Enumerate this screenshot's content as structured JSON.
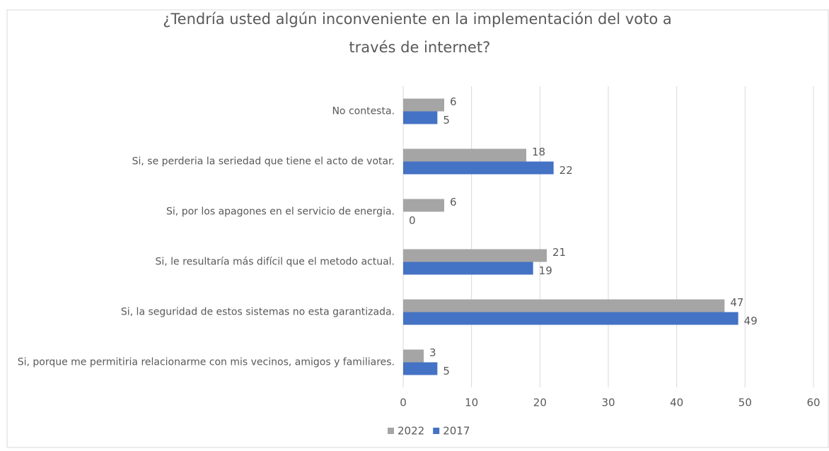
{
  "chart_data": {
    "type": "hbar",
    "title": "¿Tendría usted algún inconveniente en la implementación del voto a través de internet?",
    "categories": [
      "No contesta.",
      "Si, se perderia la seriedad que tiene el acto de votar.",
      "Si, por los apagones en el servicio de energia.",
      "Si, le resultaría más difícil que el metodo actual.",
      "Si, la seguridad de estos sistemas no esta garantizada.",
      "Si, porque me permitiria relacionarme con mis vecinos, amigos y familiares."
    ],
    "series": [
      {
        "name": "2022",
        "color": "#a5a5a5",
        "values": [
          6,
          18,
          6,
          21,
          47,
          3
        ]
      },
      {
        "name": "2017",
        "color": "#4472c4",
        "values": [
          5,
          22,
          0,
          19,
          49,
          5
        ]
      }
    ],
    "xlim": [
      0,
      60
    ],
    "xticks": [
      0,
      10,
      20,
      30,
      40,
      50,
      60
    ],
    "grid": true,
    "legend": "bottom"
  }
}
